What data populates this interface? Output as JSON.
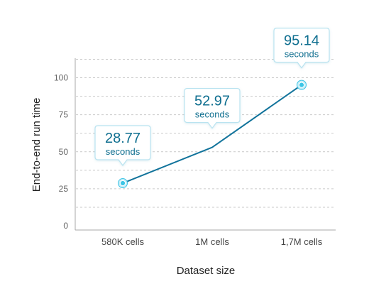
{
  "chart_data": {
    "type": "line",
    "categories": [
      "580K cells",
      "1M cells",
      "1,7M cells"
    ],
    "series": [
      {
        "values": [
          28.77,
          52.97,
          95.14
        ]
      }
    ],
    "data_labels": [
      "28.77",
      "52.97",
      "95.14"
    ],
    "data_label_unit": "seconds",
    "xlabel": "Dataset size",
    "ylabel": "End-to-end run time",
    "yticks": [
      0,
      25,
      50,
      75,
      100
    ],
    "ylim": [
      0,
      118
    ],
    "grid": true,
    "line_color": "#11739b",
    "marker_color": "#3cc5e6",
    "callout_border_color": "#b9e3f0",
    "callout_text_color": "#0e6e8f"
  }
}
